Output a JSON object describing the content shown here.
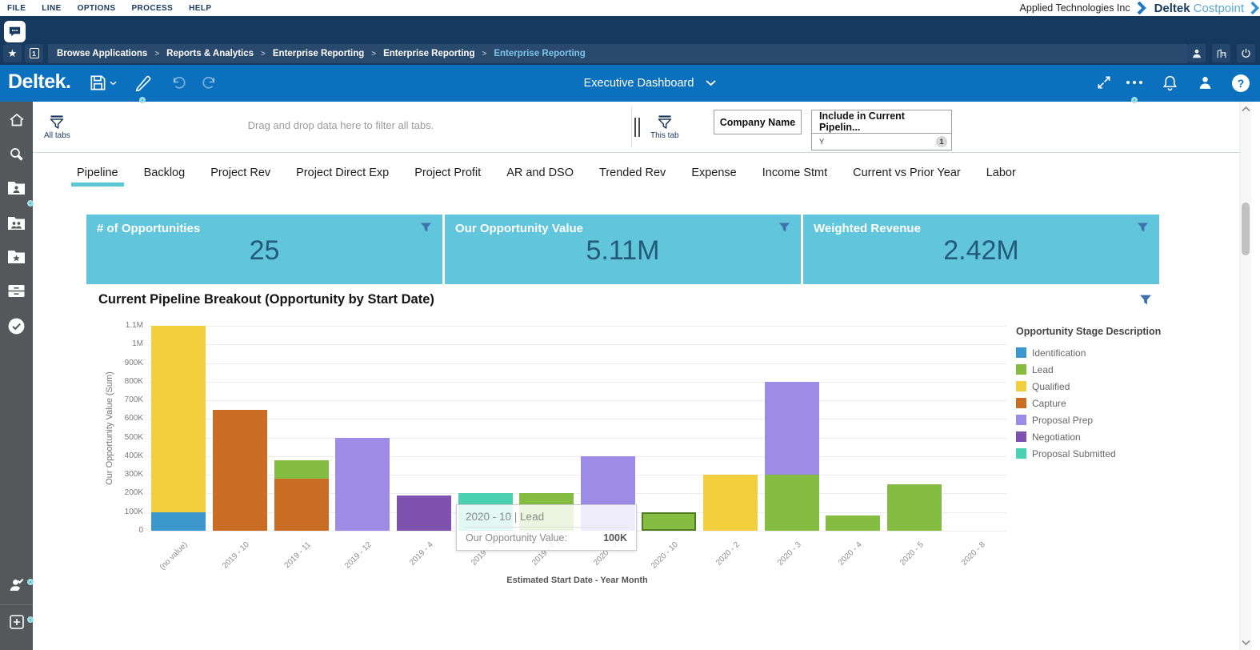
{
  "window": {
    "menu_items": [
      "FILE",
      "LINE",
      "OPTIONS",
      "PROCESS",
      "HELP"
    ],
    "company_name": "Applied Technologies Inc",
    "brand": {
      "primary": "Deltek",
      "secondary": "Costpoint"
    }
  },
  "header": {
    "open_windows": "1"
  },
  "breadcrumb": {
    "items": [
      "Browse Applications",
      "Reports & Analytics",
      "Enterprise Reporting",
      "Enterprise Reporting",
      "Enterprise Reporting"
    ]
  },
  "toolbar": {
    "logo": "Deltek.",
    "dashboard_name": "Executive Dashboard"
  },
  "filter_bar": {
    "all_tabs_label": "All tabs",
    "drop_hint": "Drag and drop data here to filter all tabs.",
    "this_tab_label": "This tab",
    "chips": [
      {
        "label": "Company Name"
      },
      {
        "label": "Include in Current Pipelin...",
        "value": "Y",
        "count": "1"
      }
    ]
  },
  "tabs": {
    "items": [
      "Pipeline",
      "Backlog",
      "Project Rev",
      "Project Direct Exp",
      "Project Profit",
      "AR and DSO",
      "Trended Rev",
      "Expense",
      "Income Stmt",
      "Current vs Prior Year",
      "Labor"
    ],
    "active_index": 0
  },
  "kpis": [
    {
      "title": "# of Opportunities",
      "value": "25"
    },
    {
      "title": "Our Opportunity Value",
      "value": "5.11M"
    },
    {
      "title": "Weighted Revenue",
      "value": "2.42M"
    }
  ],
  "chart_data": {
    "type": "stacked_bar",
    "title": "Current Pipeline Breakout (Opportunity by Start Date)",
    "xlabel": "Estimated Start Date - Year Month",
    "ylabel": "Our Opportunity Value (Sum)",
    "y_ticks": [
      "0",
      "100K",
      "200K",
      "300K",
      "400K",
      "500K",
      "600K",
      "700K",
      "800K",
      "900K",
      "1M",
      "1.1M"
    ],
    "y_max_k": 1100,
    "legend_title": "Opportunity Stage Description",
    "legend_position": "right",
    "grid": true,
    "stages": [
      {
        "name": "Identification",
        "color": "#3b97cc"
      },
      {
        "name": "Lead",
        "color": "#84bd41"
      },
      {
        "name": "Qualified",
        "color": "#f3cf3d"
      },
      {
        "name": "Capture",
        "color": "#c96d24"
      },
      {
        "name": "Proposal Prep",
        "color": "#9c8ce6"
      },
      {
        "name": "Negotiation",
        "color": "#7e52ae"
      },
      {
        "name": "Proposal Submitted",
        "color": "#4cd2b2"
      }
    ],
    "bars": [
      {
        "category": "(no value)",
        "segments": [
          {
            "stage": "Identification",
            "value_k": 100
          },
          {
            "stage": "Qualified",
            "value_k": 1000
          }
        ]
      },
      {
        "category": "2019 - 10",
        "segments": [
          {
            "stage": "Capture",
            "value_k": 650
          }
        ]
      },
      {
        "category": "2019 - 11",
        "segments": [
          {
            "stage": "Capture",
            "value_k": 280
          },
          {
            "stage": "Lead",
            "value_k": 100
          }
        ]
      },
      {
        "category": "2019 - 12",
        "segments": [
          {
            "stage": "Proposal Prep",
            "value_k": 500
          }
        ]
      },
      {
        "category": "2019 - 4",
        "segments": [
          {
            "stage": "Negotiation",
            "value_k": 190
          }
        ]
      },
      {
        "category": "2019 - 6",
        "segments": [
          {
            "stage": "Proposal Submitted",
            "value_k": 200
          }
        ]
      },
      {
        "category": "2019 - 9",
        "segments": [
          {
            "stage": "Lead",
            "value_k": 200
          }
        ]
      },
      {
        "category": "2020 - 1",
        "segments": [
          {
            "stage": "Proposal Prep",
            "value_k": 400
          }
        ]
      },
      {
        "category": "2020 - 10",
        "highlighted": true,
        "segments": [
          {
            "stage": "Lead",
            "value_k": 100
          }
        ]
      },
      {
        "category": "2020 - 2",
        "segments": [
          {
            "stage": "Qualified",
            "value_k": 300
          }
        ]
      },
      {
        "category": "2020 - 3",
        "segments": [
          {
            "stage": "Lead",
            "value_k": 300
          },
          {
            "stage": "Proposal Prep",
            "value_k": 500
          }
        ]
      },
      {
        "category": "2020 - 4",
        "segments": [
          {
            "stage": "Lead",
            "value_k": 80
          }
        ]
      },
      {
        "category": "2020 - 5",
        "segments": [
          {
            "stage": "Lead",
            "value_k": 250
          }
        ]
      },
      {
        "category": "2020 - 8",
        "segments": []
      }
    ],
    "tooltip": {
      "title": "2020 - 10 | Lead",
      "row_label": "Our Opportunity Value:",
      "row_value": "100K"
    }
  },
  "sidebar": {
    "icons": [
      "home-icon",
      "search-icon",
      "projects-folder-icon",
      "people-folder-icon",
      "favorites-folder-icon",
      "organizer-icon",
      "approvals-icon",
      "user-tasks-icon",
      "add-icon"
    ]
  },
  "colors": {
    "navy": "#16395e",
    "toolbar_blue": "#0b70bd",
    "kpi_background": "#61c6dc",
    "accent_teal": "#5bc6d4",
    "funnel_blue": "#3d72ac"
  }
}
